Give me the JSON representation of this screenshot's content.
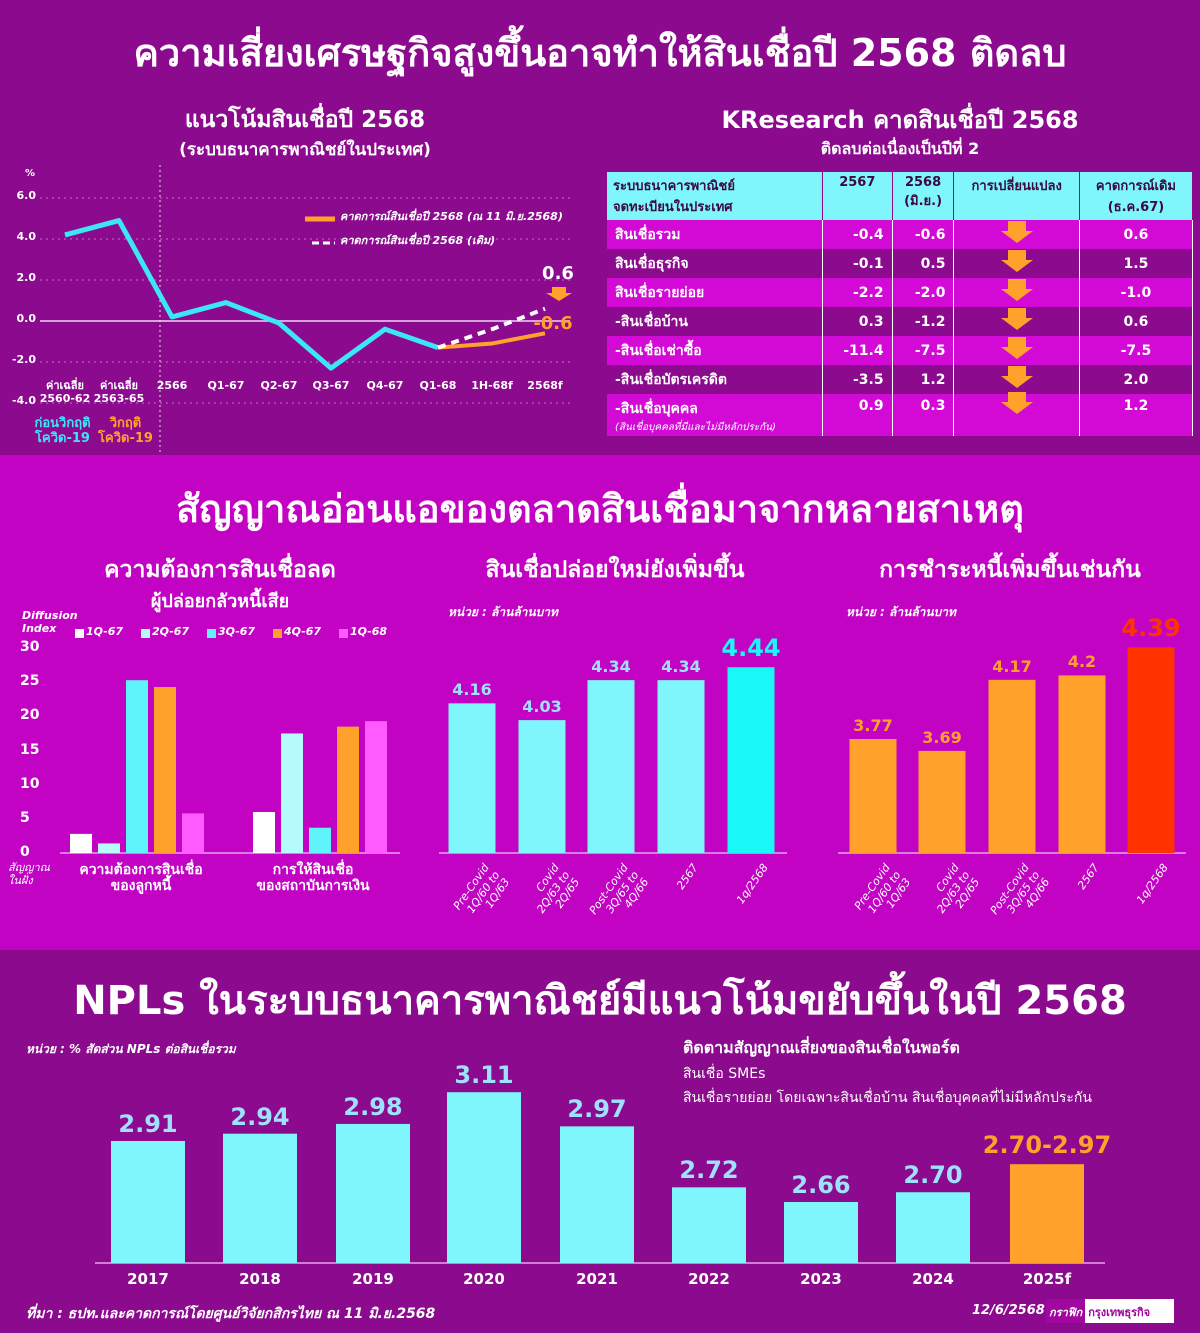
{
  "header": {
    "title": "ความเสี่ยงเศรษฐกิจสูงขึ้นอาจทำให้สินเชื่อปี 2568 ติดลบ"
  },
  "colors": {
    "purple": "#8c0a8e",
    "magenta": "#c203c4",
    "cyan": "#7ff6fb",
    "bright_cyan": "#19f7f7",
    "orange": "#ffa12b",
    "red": "#ff3300",
    "line_cyan": "#3de6f5"
  },
  "table": {
    "title": "KResearch คาดสินเชื่อปี 2568",
    "subtitle": "ติดลบต่อเนื่องเป็นปีที่ 2",
    "headers": [
      "ระบบธนาคารพาณิชย์\nจดทะเบียนในประเทศ",
      "2567",
      "2568\n(มิ.ย.)",
      "การเปลี่ยนแปลง",
      "คาดการณ์เดิม\n(ธ.ค.67)"
    ],
    "rows": [
      {
        "label": "สินเชื่อรวม",
        "y2567": "-0.4",
        "y2568": "-0.6",
        "change": "down-arrow-icon",
        "prev": "0.6"
      },
      {
        "label": "สินเชื่อธุรกิจ",
        "y2567": "-0.1",
        "y2568": "0.5",
        "change": "down-arrow-icon",
        "prev": "1.5"
      },
      {
        "label": "สินเชื่อรายย่อย",
        "y2567": "-2.2",
        "y2568": "-2.0",
        "change": "down-arrow-icon",
        "prev": "-1.0"
      },
      {
        "label": "-สินเชื่อบ้าน",
        "y2567": "0.3",
        "y2568": "-1.2",
        "change": "down-arrow-icon",
        "prev": "0.6"
      },
      {
        "label": "-สินเชื่อเช่าซื้อ",
        "y2567": "-11.4",
        "y2568": "-7.5",
        "change": "down-arrow-icon",
        "prev": "-7.5"
      },
      {
        "label": "-สินเชื่อบัตรเครดิต",
        "y2567": "-3.5",
        "y2568": "1.2",
        "change": "down-arrow-icon",
        "prev": "2.0"
      },
      {
        "label": "-สินเชื่อบุคคล",
        "note": "(สินเชื่อบุคคลที่มีและไม่มีหลักประกัน)",
        "y2567": "0.9",
        "y2568": "0.3",
        "change": "down-arrow-icon",
        "prev": "1.2"
      }
    ]
  },
  "section2": {
    "title": "สัญญาณอ่อนแอของตลาดสินเชื่อมาจากหลายสาเหตุ"
  },
  "section3": {
    "title": "NPLs ในระบบธนาคารพาณิชย์มีแนวโน้มขยับขึ้นในปี 2568",
    "watch_title": "ติดตามสัญญาณเสี่ยงของสินเชื่อในพอร์ต",
    "watch_items": [
      "สินเชื่อ SMEs",
      "สินเชื่อรายย่อย โดยเฉพาะสินเชื่อบ้าน สินเชื่อบุคคลที่ไม่มีหลักประกัน"
    ]
  },
  "footer": {
    "source": "ที่มา : ธปท.และคาดการณ์โดยศูนย์วิจัยกสิกรไทย ณ 11 มิ.ย.2568",
    "date": "12/6/2568",
    "logo_left": "กราฟิก",
    "logo_right": "กรุงเทพธุรกิจ"
  },
  "chart_data": [
    {
      "type": "line",
      "title": "แนวโน้มสินเชื่อปี 2568",
      "subtitle": "(ระบบธนาคารพาณิชย์ในประเทศ)",
      "ylabel": "%",
      "ylim": [
        -4,
        6
      ],
      "yticks": [
        "6.0",
        "4.0",
        "2.0",
        "0.0",
        "-2.0",
        "-4.0"
      ],
      "categories": [
        "ค่าเฉลี่ย\n2560-62",
        "ค่าเฉลี่ย\n2563-65",
        "2566",
        "Q1-67",
        "Q2-67",
        "Q3-67",
        "Q4-67",
        "Q1-68",
        "1H-68f",
        "2568f"
      ],
      "group_labels": [
        {
          "text": "ก่อนวิกฤติ\nโควิด-19",
          "color": "#3de6f5"
        },
        {
          "text": "วิกฤติ\nโควิด-19",
          "color": "#ffa12b"
        }
      ],
      "series": [
        {
          "values": [
            4.2,
            4.9,
            0.2,
            0.9,
            -0.1,
            -2.3,
            -0.4,
            -1.3,
            null,
            null
          ],
          "color": "#3de6f5"
        },
        {
          "name": "คาดการณ์สินเชื่อปี 2568 (ณ 11 มิ.ย.2568)",
          "values": [
            null,
            null,
            null,
            null,
            null,
            null,
            null,
            -1.3,
            -1.1,
            -0.6
          ],
          "color": "#ffa12b"
        },
        {
          "name": "คาดการณ์สินเชื่อปี 2568 (เดิม)",
          "values": [
            null,
            null,
            null,
            null,
            null,
            null,
            null,
            -1.3,
            -0.4,
            0.6
          ],
          "color": "#ffffff",
          "dashed": true
        }
      ],
      "annotations": [
        "0.6",
        "-0.6"
      ],
      "grid": true,
      "legend": "top-right"
    },
    {
      "type": "bar",
      "title": "ความต้องการสินเชื่อลด",
      "subtitle": "ผู้ปล่อยกลัวหนี้เสีย",
      "ylabel": "Diffusion\nIndex",
      "ylim": [
        0,
        30
      ],
      "yticks": [
        "30",
        "25",
        "20",
        "15",
        "10",
        "5",
        "0"
      ],
      "ynote": "สัญญาณ\nในฝั่ง",
      "categories": [
        "ความต้องการสินเชื่อ\nของลูกหนี้",
        "การให้สินเชื่อ\nของสถาบันการเงิน"
      ],
      "series": [
        {
          "name": "1Q-67",
          "values": [
            2.8,
            6.0
          ],
          "color": "#ffffff"
        },
        {
          "name": "2Q-67",
          "values": [
            1.4,
            17.5
          ],
          "color": "#b6fbfb"
        },
        {
          "name": "3Q-67",
          "values": [
            25.3,
            3.7
          ],
          "color": "#5ff4fb"
        },
        {
          "name": "4Q-67",
          "values": [
            24.3,
            18.5
          ],
          "color": "#ffa12b"
        },
        {
          "name": "1Q-68",
          "values": [
            5.8,
            19.3
          ],
          "color": "#ff5bff"
        }
      ],
      "legend": "top"
    },
    {
      "type": "bar",
      "title": "สินเชื่อปล่อยใหม่ยังเพิ่มขึ้น",
      "unit": "หน่วย : ล้านล้านบาท",
      "ylim": [
        3.0,
        4.6
      ],
      "categories": [
        "Pre-Covid\n1Q/60 to 1Q/63",
        "Covid\n2Q/63 to 2Q/65",
        "Post-Covid\n3Q/65 to 4Q/66",
        "2567",
        "1q/2568"
      ],
      "values": [
        4.16,
        4.03,
        4.34,
        4.34,
        4.44
      ],
      "labels": [
        "4.16",
        "4.03",
        "4.34",
        "4.34",
        "4.44"
      ],
      "colors": [
        "#7ff6fb",
        "#7ff6fb",
        "#7ff6fb",
        "#7ff6fb",
        "#19f7f7"
      ]
    },
    {
      "type": "bar",
      "title": "การชำระหนี้เพิ่มขึ้นเช่นกัน",
      "unit": "หน่วย : ล้านล้านบาท",
      "ylim": [
        3.0,
        4.5
      ],
      "categories": [
        "Pre-Covid\n1Q/60 to 1Q/63",
        "Covid\n2Q/63 to 2Q/65",
        "Post-Covid\n3Q/65 to 4Q/66",
        "2567",
        "1q/2568"
      ],
      "values": [
        3.77,
        3.69,
        4.17,
        4.2,
        4.39
      ],
      "labels": [
        "3.77",
        "3.69",
        "4.17",
        "4.2",
        "4.39"
      ],
      "colors": [
        "#ffa12b",
        "#ffa12b",
        "#ffa12b",
        "#ffa12b",
        "#ff3300"
      ]
    },
    {
      "type": "bar",
      "unit": "หน่วย : % สัดส่วน NPLs ต่อสินเชื่อรวม",
      "ylim": [
        2.41,
        3.2
      ],
      "categories": [
        "2017",
        "2018",
        "2019",
        "2020",
        "2021",
        "2022",
        "2023",
        "2024",
        "2025f"
      ],
      "values": [
        2.91,
        2.94,
        2.98,
        3.11,
        2.97,
        2.72,
        2.66,
        2.7,
        [
          2.7,
          2.97
        ]
      ],
      "labels": [
        "2.91",
        "2.94",
        "2.98",
        "3.11",
        "2.97",
        "2.72",
        "2.66",
        "2.70",
        "2.70-2.97"
      ],
      "colors": [
        "#7ff6fb",
        "#7ff6fb",
        "#7ff6fb",
        "#7ff6fb",
        "#7ff6fb",
        "#7ff6fb",
        "#7ff6fb",
        "#7ff6fb",
        "#ffa12b"
      ]
    }
  ]
}
